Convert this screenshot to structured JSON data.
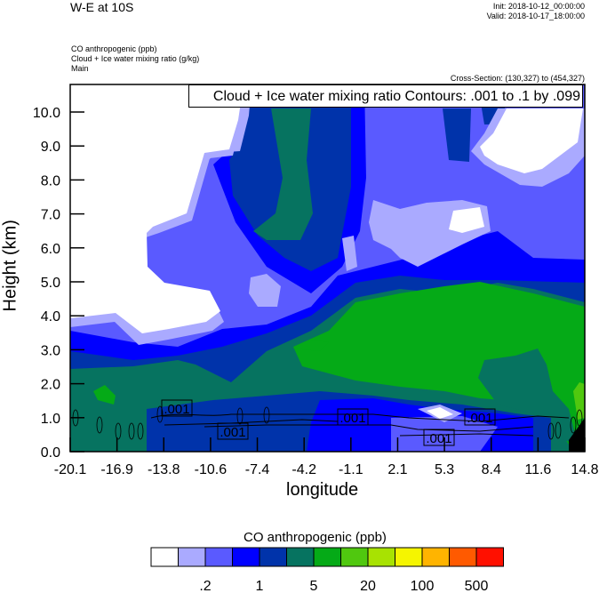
{
  "header": {
    "title": "W-E at 10S",
    "init": "Init: 2018-10-12_00:00:00",
    "valid": "Valid: 2018-10-17_18:00:00",
    "fields": [
      "CO anthropogenic   (ppb)",
      "Cloud + Ice water mixing ratio   (g/kg)",
      "Main"
    ],
    "cross_section": "Cross-Section: (130,327) to (454,327)"
  },
  "chart_data": {
    "type": "heatmap",
    "subtype": "filled-contour cross-section with line contours",
    "contour_legend": "Cloud + Ice water mixing ratio Contours: .001 to .1 by .099",
    "xlabel": "longitude",
    "ylabel": "Height (km)",
    "xlim": [
      -20.1,
      14.8
    ],
    "ylim": [
      0,
      10.8
    ],
    "xticks": [
      "-20.1",
      "-16.9",
      "-13.8",
      "-10.6",
      "-7.4",
      "-4.2",
      "-1.1",
      "2.1",
      "5.3",
      "8.4",
      "11.6",
      "14.8"
    ],
    "yticks": [
      "0.0",
      "1.0",
      "2.0",
      "3.0",
      "4.0",
      "5.0",
      "6.0",
      "7.0",
      "8.0",
      "9.0",
      "10.0"
    ],
    "contour_labels": [
      ".001",
      ".001",
      ".001",
      ".001",
      ".001"
    ],
    "colorbar": {
      "title": "CO anthropogenic  (ppb)",
      "colors": [
        "#ffffff",
        "#aaaaff",
        "#5a5aff",
        "#0000ff",
        "#0033aa",
        "#067360",
        "#05aa17",
        "#50c80f",
        "#a8e202",
        "#f5f500",
        "#ffb400",
        "#ff5a00",
        "#ff1000"
      ],
      "labels": [
        ".2",
        "1",
        "5",
        "20",
        "100",
        "500"
      ]
    }
  }
}
